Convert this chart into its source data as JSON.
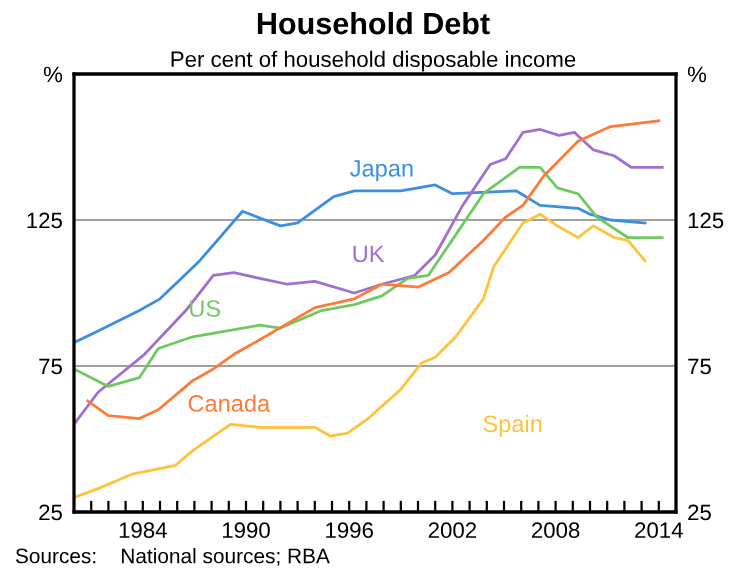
{
  "chart_data": {
    "type": "line",
    "title": "Household Debt",
    "subtitle": "Per cent of household disposable income",
    "annotations": [
      "Sources:    National sources; RBA"
    ],
    "xlim": [
      1980,
      2015
    ],
    "xticks": [
      {
        "value": 1981,
        "label": null
      },
      {
        "value": 1982,
        "label": null
      },
      {
        "value": 1983,
        "label": null
      },
      1984,
      {
        "value": 1985,
        "label": null
      },
      {
        "value": 1986,
        "label": null
      },
      {
        "value": 1987,
        "label": null
      },
      {
        "value": 1988,
        "label": null
      },
      {
        "value": 1989,
        "label": null
      },
      1990,
      {
        "value": 1991,
        "label": null
      },
      {
        "value": 1992,
        "label": null
      },
      {
        "value": 1993,
        "label": null
      },
      {
        "value": 1994,
        "label": null
      },
      {
        "value": 1995,
        "label": null
      },
      1996,
      {
        "value": 1997,
        "label": null
      },
      {
        "value": 1998,
        "label": null
      },
      {
        "value": 1999,
        "label": null
      },
      {
        "value": 2000,
        "label": null
      },
      {
        "value": 2001,
        "label": null
      },
      2002,
      {
        "value": 2003,
        "label": null
      },
      {
        "value": 2004,
        "label": null
      },
      {
        "value": 2005,
        "label": null
      },
      {
        "value": 2006,
        "label": null
      },
      {
        "value": 2007,
        "label": null
      },
      2008,
      {
        "value": 2009,
        "label": null
      },
      {
        "value": 2010,
        "label": null
      },
      {
        "value": 2011,
        "label": null
      },
      {
        "value": 2012,
        "label": null
      },
      {
        "value": 2013,
        "label": null
      },
      2014
    ],
    "ylim": [
      25,
      175
    ],
    "yticks": [
      25,
      75,
      125,
      {
        "value": 175,
        "label": "%"
      }
    ],
    "y2lim": [
      25,
      175
    ],
    "y2ticks": [
      25,
      75,
      125,
      {
        "value": 175,
        "label": "%"
      }
    ],
    "grid": "y",
    "legend": false,
    "series": [
      {
        "name": "Japan",
        "color": "#3b8ee0",
        "x": [
          1980,
          1981.4,
          1983.8,
          1985,
          1987.3,
          1989.8,
          1992,
          1993,
          1995.1,
          1996.3,
          1997.9,
          1999,
          2001,
          2002,
          2005.7,
          2007.1,
          2009.3,
          2010,
          2011.2,
          2013.2
        ],
        "values": [
          83,
          87,
          94,
          98,
          111,
          128,
          123,
          124,
          133,
          135,
          135,
          135,
          137,
          134,
          135,
          130,
          129,
          127,
          125,
          124
        ]
      },
      {
        "name": "UK",
        "color": "#a070d0",
        "x": [
          1980,
          1981.4,
          1984.1,
          1986.5,
          1988.1,
          1989.3,
          1990.8,
          1992.4,
          1994,
          1996.3,
          1997.9,
          1999.8,
          2001,
          2002.6,
          2004.2,
          2005.1,
          2006.1,
          2007.1,
          2008.2,
          2009.1,
          2010.2,
          2011.4,
          2012.4,
          2014.2
        ],
        "values": [
          55,
          66,
          79,
          94,
          106,
          107,
          105,
          103,
          104,
          100,
          103,
          106,
          113,
          130,
          144,
          146,
          155,
          156,
          154,
          155,
          149,
          147,
          143,
          143
        ]
      },
      {
        "name": "US",
        "color": "#70c860",
        "x": [
          1980,
          1982,
          1983.8,
          1984.9,
          1986.9,
          1988.9,
          1990.8,
          1992,
          1994.4,
          1996.3,
          1997.9,
          1999.4,
          2000.6,
          2002.2,
          2003.8,
          2005.9,
          2007.1,
          2008.1,
          2009.3,
          2010.4,
          2012.2,
          2013.2,
          2014.2
        ],
        "values": [
          74,
          68,
          71,
          81,
          85,
          87,
          89,
          88,
          94,
          96,
          99,
          105,
          106,
          120,
          134,
          143,
          143,
          136,
          134,
          126,
          119,
          119,
          119
        ]
      },
      {
        "name": "Canada",
        "color": "#ff7a38",
        "x": [
          1980.8,
          1982,
          1983.8,
          1984.9,
          1986.9,
          1988.1,
          1989.3,
          1990.8,
          1994,
          1996.3,
          1997.9,
          2000,
          2001.8,
          2003.8,
          2005.1,
          2006.1,
          2007.3,
          2009.3,
          2011.2,
          2014
        ],
        "values": [
          63,
          58,
          57,
          60,
          70,
          74,
          79,
          84,
          95,
          98,
          103,
          102,
          107,
          118,
          126,
          130,
          140,
          152,
          157,
          159
        ]
      },
      {
        "name": "Spain",
        "color": "#ffc23c",
        "x": [
          1980,
          1981.4,
          1983.4,
          1985.9,
          1986.9,
          1989.1,
          1990.8,
          1994,
          1994.9,
          1995.9,
          1997.1,
          1999,
          2000.2,
          2001,
          2002.2,
          2003.8,
          2004.4,
          2006.1,
          2007.1,
          2008.1,
          2009.3,
          2010.2,
          2011.4,
          2012.2,
          2013.2
        ],
        "values": [
          30,
          33,
          38,
          41,
          46,
          55,
          54,
          54,
          51,
          52,
          57,
          67,
          76,
          78,
          85,
          98,
          109,
          124,
          127,
          123,
          119,
          123,
          119,
          118,
          111
        ]
      }
    ]
  }
}
